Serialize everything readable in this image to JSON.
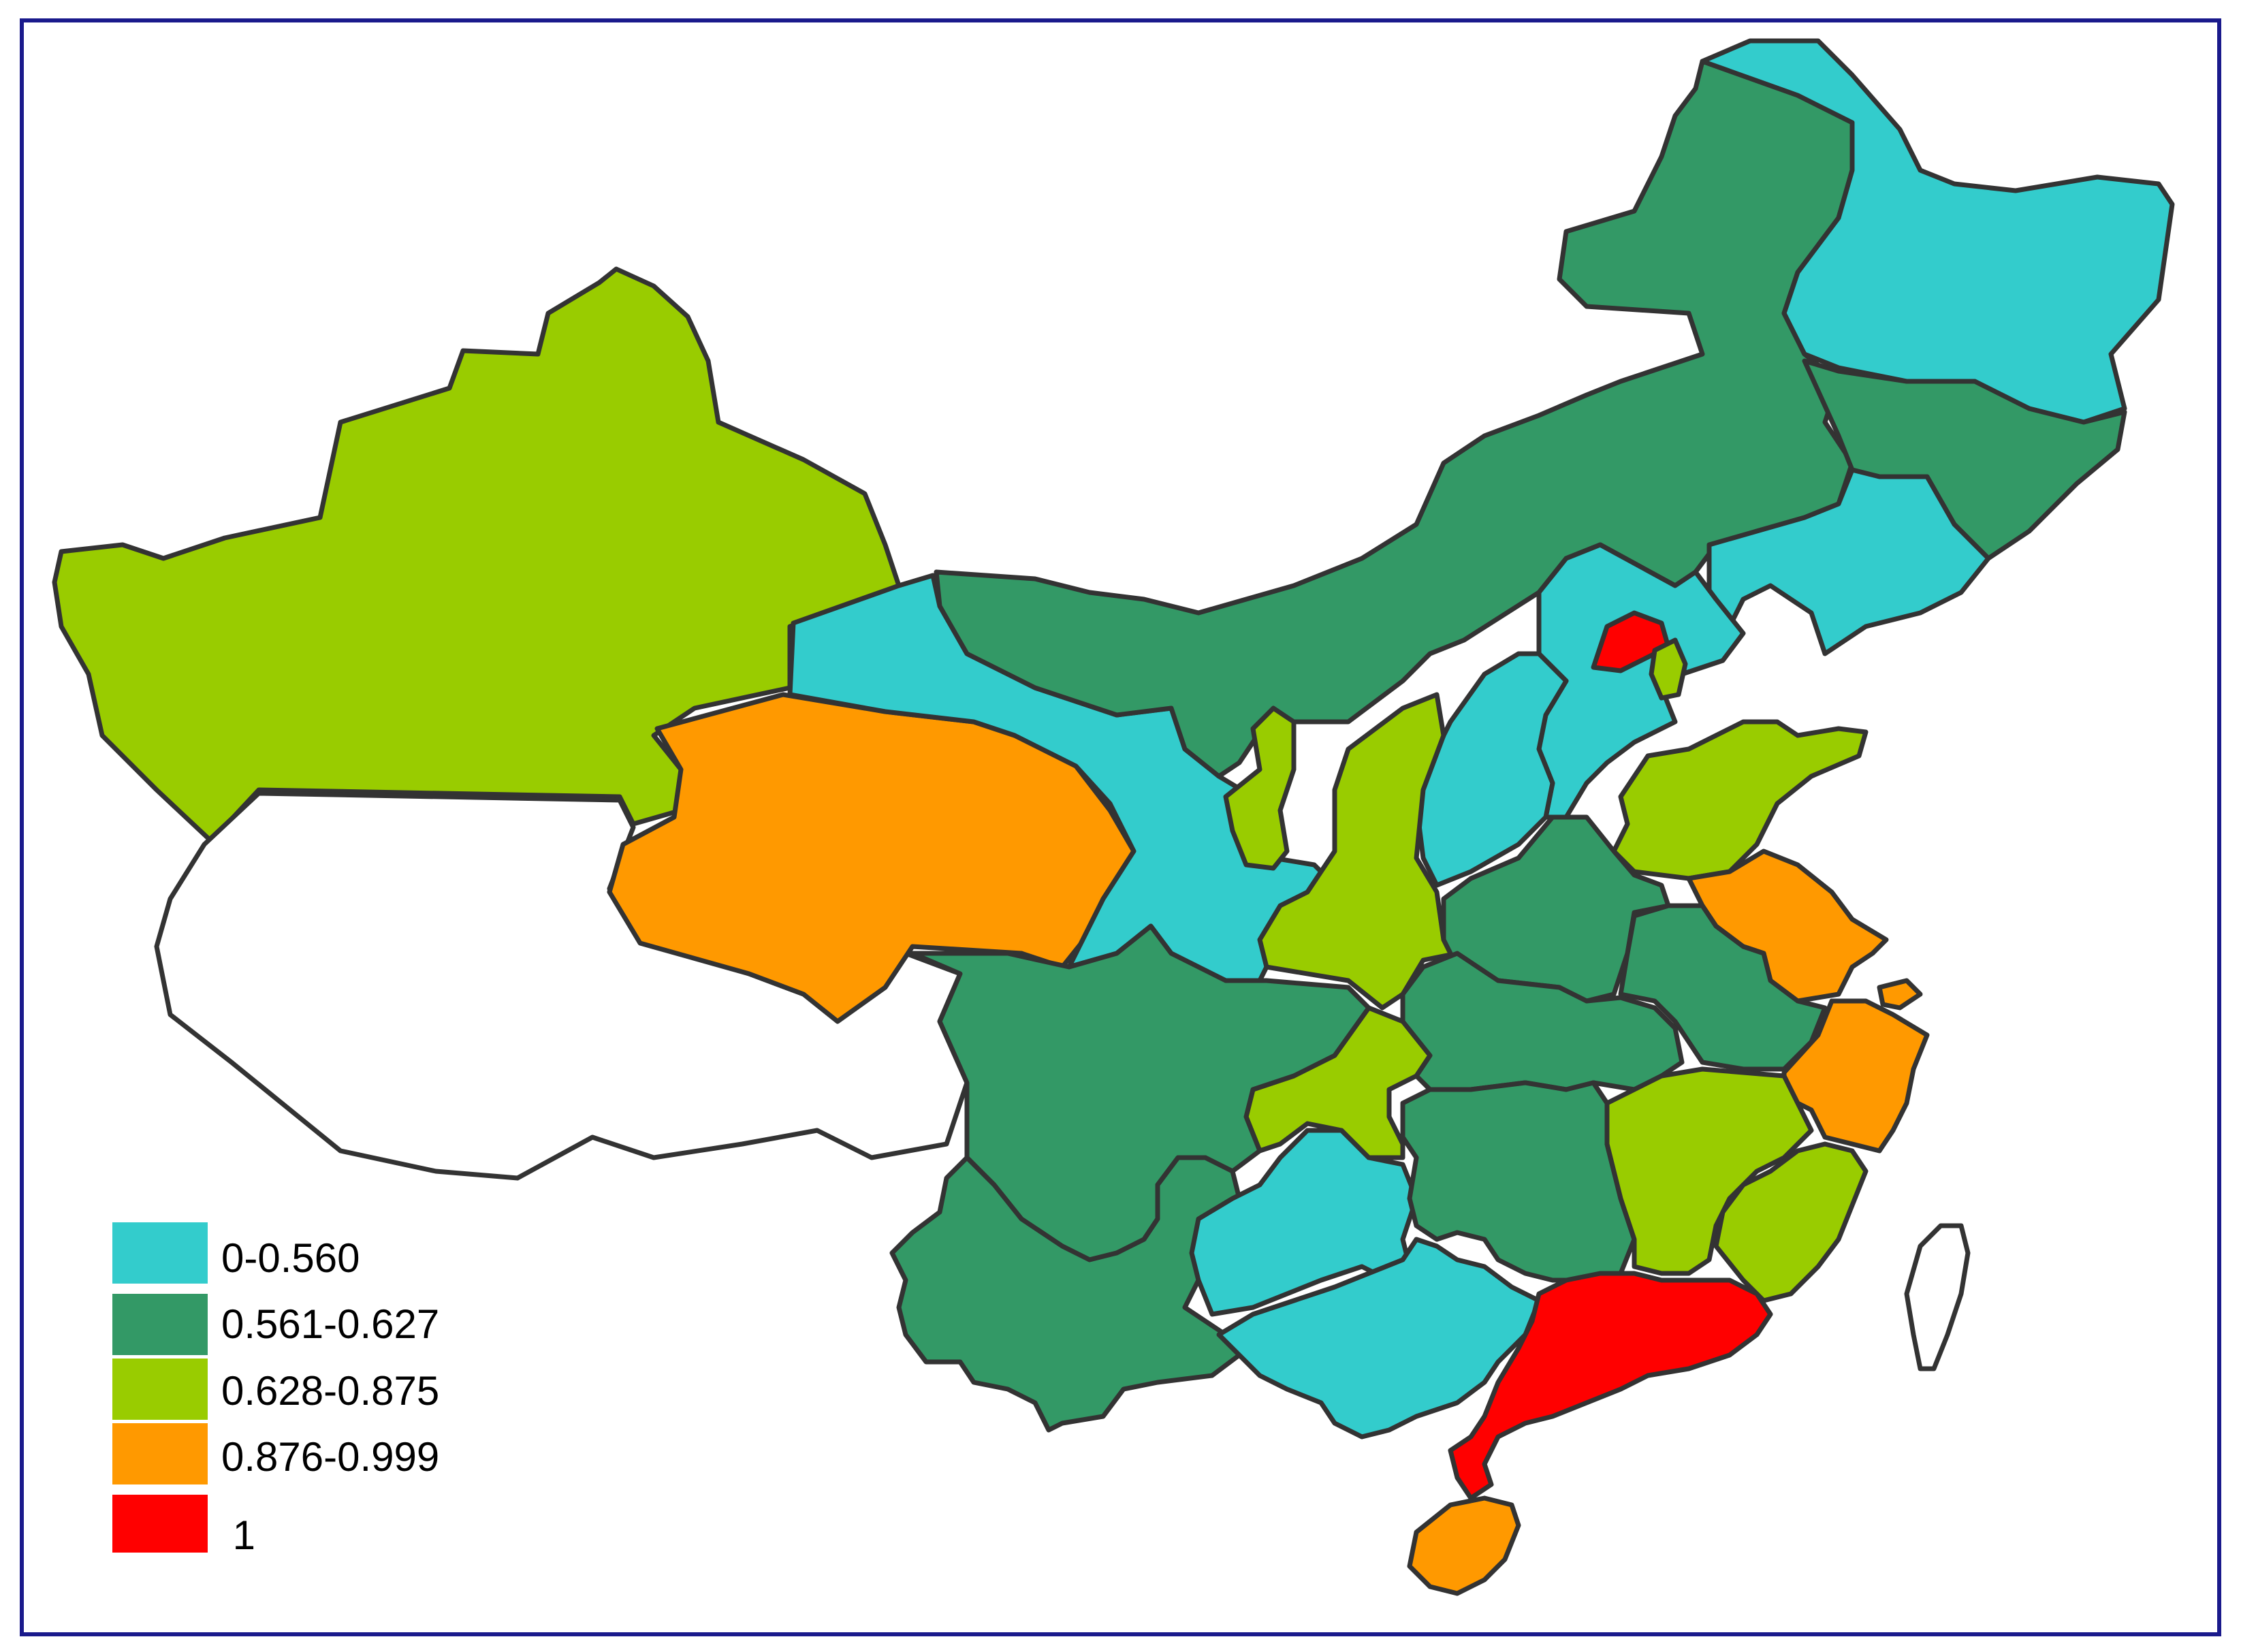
{
  "colors": {
    "frame": "#1a1a8c",
    "outline": "#333333",
    "no_data": "#ffffff"
  },
  "legend": [
    {
      "label": "0-0.560",
      "color": "#33cccc"
    },
    {
      "label": "0.561-0.627",
      "color": "#339966"
    },
    {
      "label": "0.628-0.875",
      "color": "#99cc00"
    },
    {
      "label": "0.876-0.999",
      "color": "#ff9900"
    },
    {
      "label": " 1",
      "color": "#ff0000"
    }
  ],
  "regions": [
    {
      "id": "xinjiang",
      "class": 2
    },
    {
      "id": "tibet",
      "class": null
    },
    {
      "id": "qinghai",
      "class": 3
    },
    {
      "id": "gansu",
      "class": 0
    },
    {
      "id": "inner-mongolia",
      "class": 1
    },
    {
      "id": "heilongjiang",
      "class": 0
    },
    {
      "id": "jilin",
      "class": 1
    },
    {
      "id": "liaoning",
      "class": 0
    },
    {
      "id": "hebei",
      "class": 0
    },
    {
      "id": "beijing",
      "class": 4
    },
    {
      "id": "tianjin",
      "class": 2
    },
    {
      "id": "shanxi",
      "class": 0
    },
    {
      "id": "ningxia",
      "class": 2
    },
    {
      "id": "shaanxi",
      "class": 2
    },
    {
      "id": "shandong",
      "class": 2
    },
    {
      "id": "henan",
      "class": 1
    },
    {
      "id": "jiangsu",
      "class": 3
    },
    {
      "id": "shanghai",
      "class": 3
    },
    {
      "id": "anhui",
      "class": 1
    },
    {
      "id": "zhejiang",
      "class": 3
    },
    {
      "id": "hubei",
      "class": 1
    },
    {
      "id": "chongqing",
      "class": 2
    },
    {
      "id": "sichuan",
      "class": 1
    },
    {
      "id": "yunnan",
      "class": 1
    },
    {
      "id": "guizhou",
      "class": 0
    },
    {
      "id": "hunan",
      "class": 1
    },
    {
      "id": "jiangxi",
      "class": 2
    },
    {
      "id": "fujian",
      "class": 2
    },
    {
      "id": "guangxi",
      "class": 0
    },
    {
      "id": "guangdong",
      "class": 4
    },
    {
      "id": "hainan",
      "class": 3
    },
    {
      "id": "taiwan",
      "class": null
    }
  ]
}
